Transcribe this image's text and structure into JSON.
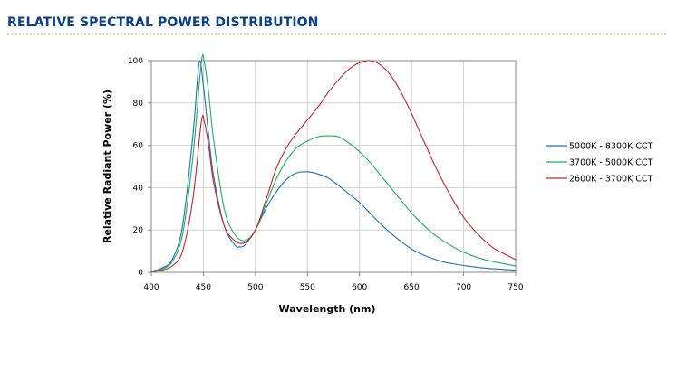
{
  "header": {
    "title": "RELATIVE SPECTRAL POWER DISTRIBUTION"
  },
  "chart_data": {
    "type": "line",
    "title": "",
    "xlabel": "Wavelength (nm)",
    "ylabel": "Relative Radiant Power (%)",
    "xlim": [
      400,
      750
    ],
    "ylim": [
      0,
      100
    ],
    "xticks": [
      "400",
      "450",
      "500",
      "550",
      "600",
      "650",
      "700",
      "750"
    ],
    "yticks": [
      "0",
      "20",
      "40",
      "60",
      "80",
      "100"
    ],
    "grid": true,
    "legend_position": "right",
    "series": [
      {
        "name": "5000K - 8300K CCT",
        "color": "#1f6fb8",
        "x": [
          400,
          410,
          420,
          430,
          440,
          446,
          450,
          455,
          460,
          470,
          480,
          485,
          490,
          500,
          510,
          520,
          530,
          540,
          550,
          560,
          570,
          580,
          590,
          600,
          610,
          620,
          630,
          640,
          650,
          660,
          670,
          680,
          690,
          700,
          720,
          750
        ],
        "y": [
          0.5,
          2,
          6,
          22,
          65,
          99,
          88,
          65,
          45,
          22,
          13,
          12,
          13,
          20,
          30,
          38,
          44,
          47,
          47.5,
          46.5,
          44.5,
          41,
          37,
          33,
          28,
          23,
          18.5,
          14.5,
          11,
          8.5,
          6.5,
          5,
          4,
          3.2,
          2,
          1
        ]
      },
      {
        "name": "3700K - 5000K CCT",
        "color": "#1fae5a",
        "x": [
          400,
          410,
          420,
          430,
          440,
          448,
          451,
          455,
          460,
          470,
          480,
          490,
          500,
          510,
          520,
          530,
          540,
          550,
          560,
          570,
          580,
          590,
          600,
          610,
          620,
          630,
          640,
          650,
          660,
          670,
          680,
          690,
          700,
          720,
          750
        ],
        "y": [
          0.3,
          1.5,
          5,
          18,
          55,
          99,
          99,
          85,
          62,
          30,
          18,
          15,
          20,
          32,
          44,
          53,
          59,
          62,
          64,
          64.5,
          64,
          61,
          57,
          52,
          46,
          40,
          34,
          28,
          23,
          18.5,
          15,
          12,
          9.5,
          6,
          3
        ]
      },
      {
        "name": "2600K - 3700K CCT",
        "color": "#c0272d",
        "x": [
          400,
          410,
          420,
          430,
          440,
          448,
          451,
          455,
          460,
          470,
          480,
          490,
          500,
          510,
          520,
          530,
          540,
          550,
          560,
          570,
          580,
          590,
          600,
          610,
          620,
          630,
          640,
          650,
          660,
          670,
          680,
          690,
          700,
          710,
          720,
          730,
          740,
          750
        ],
        "y": [
          0.2,
          1,
          3,
          10,
          35,
          71,
          71,
          60,
          42,
          22,
          15,
          14,
          20,
          34,
          49,
          59,
          66,
          72,
          78,
          85,
          91,
          96,
          99,
          100,
          98,
          93,
          85,
          75,
          64,
          53,
          43,
          34,
          26,
          20,
          15,
          11,
          8.5,
          6
        ]
      }
    ]
  }
}
